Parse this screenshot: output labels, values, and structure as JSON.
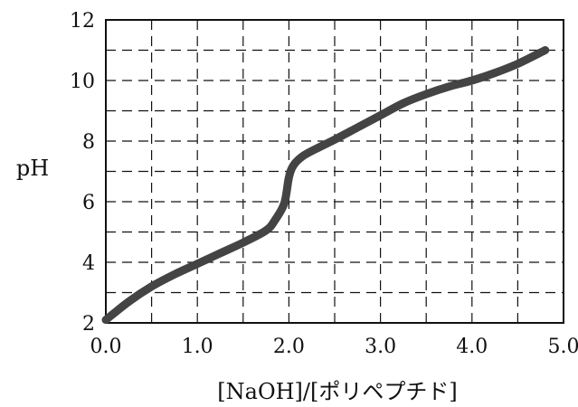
{
  "chart_data": {
    "type": "line",
    "title": "",
    "xlabel": "[NaOH]/[ポリペプチド]",
    "ylabel": "pH",
    "xlim": [
      0.0,
      5.0
    ],
    "ylim": [
      2,
      12
    ],
    "x_ticks": [
      "0.0",
      "1.0",
      "2.0",
      "3.0",
      "4.0",
      "5.0"
    ],
    "y_ticks": [
      "2",
      "4",
      "6",
      "8",
      "10",
      "12"
    ],
    "grid": true,
    "grid_style": "dashed",
    "x_grid_step": 0.5,
    "y_grid_step": 1,
    "line_color": "#444444",
    "series": [
      {
        "x": [
          0.0,
          0.25,
          0.5,
          0.75,
          1.0,
          1.25,
          1.5,
          1.75,
          1.85,
          1.95,
          2.0,
          2.05,
          2.15,
          2.3,
          2.5,
          2.75,
          3.0,
          3.25,
          3.5,
          3.75,
          4.0,
          4.25,
          4.5,
          4.8
        ],
        "values": [
          2.1,
          2.7,
          3.2,
          3.6,
          3.95,
          4.3,
          4.65,
          5.05,
          5.4,
          5.95,
          6.8,
          7.2,
          7.5,
          7.75,
          8.05,
          8.45,
          8.85,
          9.25,
          9.55,
          9.8,
          10.0,
          10.25,
          10.55,
          11.0
        ]
      }
    ]
  }
}
